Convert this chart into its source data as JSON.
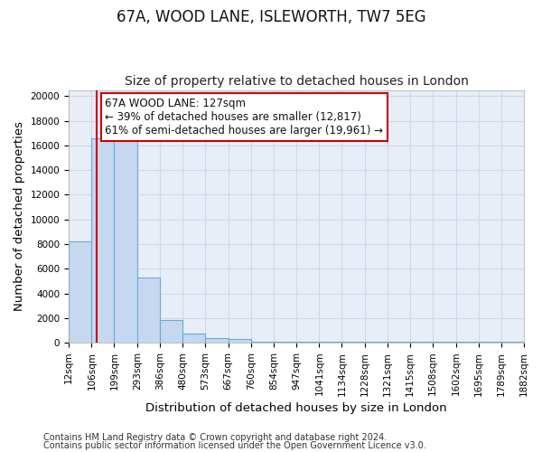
{
  "title": "67A, WOOD LANE, ISLEWORTH, TW7 5EG",
  "subtitle": "Size of property relative to detached houses in London",
  "xlabel": "Distribution of detached houses by size in London",
  "ylabel": "Number of detached properties",
  "bin_edges": [
    12,
    106,
    199,
    293,
    386,
    480,
    573,
    667,
    760,
    854,
    947,
    1041,
    1134,
    1228,
    1321,
    1415,
    1508,
    1602,
    1695,
    1789,
    1882
  ],
  "bar_heights": [
    8200,
    16600,
    16600,
    5300,
    1850,
    750,
    350,
    300,
    50,
    50,
    50,
    50,
    50,
    50,
    50,
    50,
    50,
    50,
    50,
    50
  ],
  "bar_color": "#c5d8f0",
  "bar_edge_color": "#6aaad4",
  "grid_color": "#d0d8e8",
  "background_color": "#e8eef8",
  "red_line_x": 127,
  "annotation_title": "67A WOOD LANE: 127sqm",
  "annotation_line1": "← 39% of detached houses are smaller (12,817)",
  "annotation_line2": "61% of semi-detached houses are larger (19,961) →",
  "annotation_box_color": "#ffffff",
  "annotation_border_color": "#cc0000",
  "red_line_color": "#cc0000",
  "ylim": [
    0,
    20500
  ],
  "yticks": [
    0,
    2000,
    4000,
    6000,
    8000,
    10000,
    12000,
    14000,
    16000,
    18000,
    20000
  ],
  "footer_line1": "Contains HM Land Registry data © Crown copyright and database right 2024.",
  "footer_line2": "Contains public sector information licensed under the Open Government Licence v3.0.",
  "title_fontsize": 12,
  "subtitle_fontsize": 10,
  "axis_label_fontsize": 9.5,
  "tick_fontsize": 7.5,
  "annotation_fontsize": 8.5,
  "footer_fontsize": 7
}
